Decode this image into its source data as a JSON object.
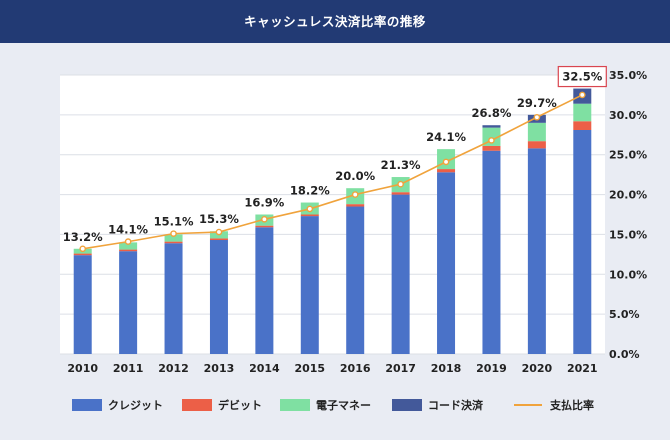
{
  "header": {
    "title": "キャッシュレス決済比率の推移"
  },
  "chart_data": {
    "type": "bar",
    "stacked": true,
    "categories": [
      "2010",
      "2011",
      "2012",
      "2013",
      "2014",
      "2015",
      "2016",
      "2017",
      "2018",
      "2019",
      "2020",
      "2021"
    ],
    "series": [
      {
        "name": "クレジット",
        "color": "#4a72c8",
        "values": [
          12.4,
          12.9,
          13.9,
          14.3,
          15.9,
          17.3,
          18.5,
          20.0,
          22.8,
          25.5,
          25.8,
          28.1
        ]
      },
      {
        "name": "デビット",
        "color": "#ec5f47",
        "values": [
          0.2,
          0.2,
          0.2,
          0.2,
          0.2,
          0.2,
          0.3,
          0.3,
          0.4,
          0.6,
          0.9,
          1.1
        ]
      },
      {
        "name": "電子マネー",
        "color": "#7fe0a2",
        "values": [
          0.6,
          0.9,
          0.9,
          0.9,
          1.4,
          1.5,
          2.0,
          1.9,
          2.5,
          2.3,
          2.3,
          2.2
        ]
      },
      {
        "name": "コード決済",
        "color": "#43599a",
        "values": [
          0,
          0,
          0,
          0,
          0,
          0,
          0,
          0,
          0,
          0.3,
          1.0,
          1.9
        ]
      }
    ],
    "line": {
      "name": "支払比率",
      "color": "#f0a33c",
      "values": [
        13.2,
        14.1,
        15.1,
        15.3,
        16.9,
        18.2,
        20.0,
        21.3,
        24.1,
        26.8,
        29.7,
        32.5
      ],
      "labels": [
        "13.2%",
        "14.1%",
        "15.1%",
        "15.3%",
        "16.9%",
        "18.2%",
        "20.0%",
        "21.3%",
        "24.1%",
        "26.8%",
        "29.7%",
        "32.5%"
      ]
    },
    "y_axis": {
      "position": "right",
      "ylim": [
        0,
        35
      ],
      "ticks": [
        0,
        5,
        10,
        15,
        20,
        25,
        30,
        35
      ],
      "tick_labels": [
        "0.0%",
        "5.0%",
        "10.0%",
        "15.0%",
        "20.0%",
        "25.0%",
        "30.0%",
        "35.0%"
      ]
    },
    "highlighted_label_index": 11,
    "highlight_color": "#d9454f",
    "grid": true,
    "legend_position": "bottom",
    "title": "キャッシュレス決済比率の推移"
  }
}
